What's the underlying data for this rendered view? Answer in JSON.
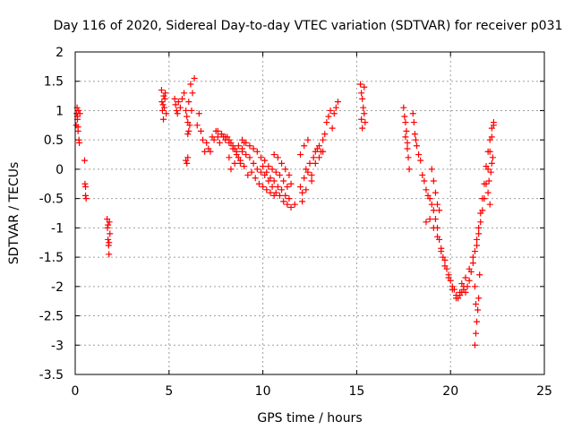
{
  "chart_data": {
    "type": "scatter",
    "title": "Day 116 of 2020, Sidereal Day-to-day VTEC variation (SDTVAR) for receiver p031",
    "xlabel": "GPS time / hours",
    "ylabel": "SDTVAR / TECUs",
    "xlim": [
      0,
      25
    ],
    "ylim": [
      -3.5,
      2
    ],
    "xticks": [
      "0",
      "5",
      "10",
      "15",
      "20",
      "25"
    ],
    "yticks": [
      "2",
      "1.5",
      "1",
      "0.5",
      "0",
      "-0.5",
      "-1",
      "-1.5",
      "-2",
      "-2.5",
      "-3",
      "-3.5"
    ],
    "grid": true,
    "marker": "+",
    "marker_color": "#ff0000",
    "series": [
      {
        "name": "SDTVAR",
        "points": [
          [
            0.05,
            0.75
          ],
          [
            0.08,
            0.95
          ],
          [
            0.1,
            1.05
          ],
          [
            0.12,
            0.85
          ],
          [
            0.15,
            0.65
          ],
          [
            0.18,
            1.0
          ],
          [
            0.2,
            0.5
          ],
          [
            0.22,
            0.45
          ],
          [
            0.25,
            0.95
          ],
          [
            0.15,
            0.72
          ],
          [
            0.12,
            0.9
          ],
          [
            0.5,
            0.15
          ],
          [
            0.52,
            -0.25
          ],
          [
            0.55,
            -0.3
          ],
          [
            0.58,
            -0.5
          ],
          [
            0.55,
            -0.45
          ],
          [
            1.7,
            -0.85
          ],
          [
            1.72,
            -1.0
          ],
          [
            1.75,
            -1.2
          ],
          [
            1.78,
            -1.3
          ],
          [
            1.8,
            -1.45
          ],
          [
            1.82,
            -0.9
          ],
          [
            1.85,
            -1.1
          ],
          [
            1.75,
            -0.95
          ],
          [
            1.8,
            -1.25
          ],
          [
            4.6,
            1.35
          ],
          [
            4.62,
            1.15
          ],
          [
            4.65,
            1.0
          ],
          [
            4.7,
            0.85
          ],
          [
            4.72,
            1.25
          ],
          [
            4.75,
            1.05
          ],
          [
            4.8,
            1.3
          ],
          [
            4.85,
            0.95
          ],
          [
            4.78,
            1.2
          ],
          [
            4.68,
            1.1
          ],
          [
            5.3,
            1.2
          ],
          [
            5.35,
            1.1
          ],
          [
            5.4,
            1.0
          ],
          [
            5.45,
            0.95
          ],
          [
            5.5,
            1.15
          ],
          [
            5.6,
            1.05
          ],
          [
            5.7,
            1.2
          ],
          [
            5.8,
            1.3
          ],
          [
            5.9,
            1.0
          ],
          [
            5.95,
            0.9
          ],
          [
            6.0,
            0.8
          ],
          [
            6.05,
            0.65
          ],
          [
            6.0,
            0.6
          ],
          [
            6.1,
            0.75
          ],
          [
            6.2,
            1.0
          ],
          [
            6.25,
            1.3
          ],
          [
            6.05,
            1.15
          ],
          [
            5.9,
            0.15
          ],
          [
            5.95,
            0.1
          ],
          [
            6.0,
            0.2
          ],
          [
            6.35,
            1.55
          ],
          [
            6.15,
            1.45
          ],
          [
            6.5,
            0.75
          ],
          [
            6.6,
            0.95
          ],
          [
            6.7,
            0.65
          ],
          [
            6.8,
            0.5
          ],
          [
            6.9,
            0.3
          ],
          [
            7.0,
            0.45
          ],
          [
            7.1,
            0.35
          ],
          [
            7.2,
            0.3
          ],
          [
            7.3,
            0.55
          ],
          [
            7.4,
            0.5
          ],
          [
            7.5,
            0.65
          ],
          [
            7.6,
            0.55
          ],
          [
            7.7,
            0.45
          ],
          [
            7.8,
            0.6
          ],
          [
            7.9,
            0.55
          ],
          [
            8.0,
            0.5
          ],
          [
            8.1,
            0.55
          ],
          [
            8.2,
            0.5
          ],
          [
            8.3,
            0.45
          ],
          [
            8.4,
            0.4
          ],
          [
            8.5,
            0.35
          ],
          [
            8.6,
            0.3
          ],
          [
            8.7,
            0.2
          ],
          [
            8.8,
            0.15
          ],
          [
            8.9,
            0.35
          ],
          [
            9.0,
            0.45
          ],
          [
            8.5,
            0.1
          ],
          [
            8.3,
            0.0
          ],
          [
            8.2,
            0.2
          ],
          [
            7.6,
            0.65
          ],
          [
            7.8,
            0.6
          ],
          [
            8.0,
            0.55
          ],
          [
            8.2,
            0.45
          ],
          [
            8.4,
            0.35
          ],
          [
            8.6,
            0.25
          ],
          [
            8.8,
            0.1
          ],
          [
            9.0,
            0.05
          ],
          [
            8.7,
            0.4
          ],
          [
            8.9,
            0.3
          ],
          [
            9.1,
            0.25
          ],
          [
            9.3,
            0.2
          ],
          [
            9.5,
            0.1
          ],
          [
            9.7,
            0.0
          ],
          [
            9.9,
            -0.05
          ],
          [
            10.1,
            -0.1
          ],
          [
            10.3,
            -0.2
          ],
          [
            10.5,
            -0.3
          ],
          [
            10.7,
            -0.4
          ],
          [
            10.9,
            -0.45
          ],
          [
            11.1,
            -0.55
          ],
          [
            11.3,
            -0.6
          ],
          [
            11.5,
            -0.65
          ],
          [
            11.7,
            -0.6
          ],
          [
            8.9,
            0.5
          ],
          [
            9.1,
            0.45
          ],
          [
            9.3,
            0.4
          ],
          [
            9.5,
            0.35
          ],
          [
            9.7,
            0.3
          ],
          [
            9.9,
            0.2
          ],
          [
            10.1,
            0.15
          ],
          [
            10.3,
            0.05
          ],
          [
            10.5,
            0.0
          ],
          [
            10.7,
            -0.05
          ],
          [
            10.9,
            -0.1
          ],
          [
            11.1,
            -0.2
          ],
          [
            11.3,
            -0.3
          ],
          [
            9.2,
            -0.1
          ],
          [
            9.4,
            -0.05
          ],
          [
            9.6,
            -0.15
          ],
          [
            9.8,
            -0.25
          ],
          [
            10.0,
            -0.3
          ],
          [
            10.2,
            -0.35
          ],
          [
            10.4,
            -0.4
          ],
          [
            10.6,
            -0.45
          ],
          [
            10.0,
            0.05
          ],
          [
            10.2,
            -0.05
          ],
          [
            10.4,
            -0.15
          ],
          [
            10.6,
            -0.2
          ],
          [
            10.8,
            -0.3
          ],
          [
            11.0,
            -0.35
          ],
          [
            11.2,
            -0.45
          ],
          [
            11.4,
            -0.5
          ],
          [
            10.6,
            0.25
          ],
          [
            10.8,
            0.2
          ],
          [
            11.0,
            0.1
          ],
          [
            11.2,
            0.0
          ],
          [
            11.4,
            -0.1
          ],
          [
            11.5,
            -0.25
          ],
          [
            12.0,
            -0.3
          ],
          [
            12.1,
            -0.4
          ],
          [
            12.2,
            -0.15
          ],
          [
            12.3,
            0.0
          ],
          [
            12.4,
            -0.05
          ],
          [
            12.5,
            0.1
          ],
          [
            12.6,
            -0.1
          ],
          [
            12.7,
            0.2
          ],
          [
            12.8,
            0.3
          ],
          [
            12.9,
            0.35
          ],
          [
            13.0,
            0.4
          ],
          [
            13.1,
            0.3
          ],
          [
            13.2,
            0.5
          ],
          [
            13.3,
            0.6
          ],
          [
            13.4,
            0.8
          ],
          [
            13.5,
            0.9
          ],
          [
            13.6,
            1.0
          ],
          [
            13.7,
            0.7
          ],
          [
            13.8,
            0.95
          ],
          [
            13.9,
            1.05
          ],
          [
            14.0,
            1.15
          ],
          [
            12.4,
            0.5
          ],
          [
            12.2,
            0.4
          ],
          [
            12.0,
            0.25
          ],
          [
            12.1,
            -0.55
          ],
          [
            12.3,
            -0.35
          ],
          [
            12.6,
            -0.2
          ],
          [
            12.8,
            0.1
          ],
          [
            13.0,
            0.2
          ],
          [
            13.2,
            0.3
          ],
          [
            15.2,
            1.45
          ],
          [
            15.25,
            1.3
          ],
          [
            15.3,
            1.2
          ],
          [
            15.35,
            1.05
          ],
          [
            15.4,
            0.95
          ],
          [
            15.45,
            0.8
          ],
          [
            15.3,
            0.7
          ],
          [
            15.4,
            1.4
          ],
          [
            15.25,
            0.85
          ],
          [
            17.5,
            1.05
          ],
          [
            17.55,
            0.9
          ],
          [
            17.6,
            0.8
          ],
          [
            17.65,
            0.65
          ],
          [
            17.7,
            0.35
          ],
          [
            17.75,
            0.2
          ],
          [
            17.8,
            0.0
          ],
          [
            17.6,
            0.55
          ],
          [
            17.7,
            0.45
          ],
          [
            18.0,
            0.95
          ],
          [
            18.05,
            0.8
          ],
          [
            18.1,
            0.6
          ],
          [
            18.15,
            0.5
          ],
          [
            18.2,
            0.4
          ],
          [
            18.3,
            0.25
          ],
          [
            18.4,
            0.15
          ],
          [
            18.5,
            -0.1
          ],
          [
            18.6,
            -0.2
          ],
          [
            18.7,
            -0.35
          ],
          [
            18.8,
            -0.45
          ],
          [
            18.9,
            -0.5
          ],
          [
            19.0,
            -0.6
          ],
          [
            19.1,
            -0.7
          ],
          [
            19.2,
            -0.85
          ],
          [
            19.3,
            -1.0
          ],
          [
            19.4,
            -1.2
          ],
          [
            19.5,
            -1.35
          ],
          [
            19.6,
            -1.5
          ],
          [
            19.7,
            -1.55
          ],
          [
            19.8,
            -1.7
          ],
          [
            19.9,
            -1.8
          ],
          [
            20.0,
            -1.9
          ],
          [
            20.1,
            -2.0
          ],
          [
            20.2,
            -2.05
          ],
          [
            20.3,
            -2.15
          ],
          [
            20.4,
            -2.2
          ],
          [
            20.5,
            -2.15
          ],
          [
            20.6,
            -2.1
          ],
          [
            20.7,
            -2.05
          ],
          [
            20.8,
            -2.1
          ],
          [
            20.9,
            -2.0
          ],
          [
            18.7,
            -0.9
          ],
          [
            18.9,
            -0.85
          ],
          [
            19.1,
            -1.0
          ],
          [
            19.3,
            -1.15
          ],
          [
            19.5,
            -1.4
          ],
          [
            19.7,
            -1.65
          ],
          [
            19.9,
            -1.85
          ],
          [
            20.1,
            -2.05
          ],
          [
            20.3,
            -2.2
          ],
          [
            20.5,
            -2.1
          ],
          [
            20.7,
            -2.0
          ],
          [
            19.0,
            0.0
          ],
          [
            19.1,
            -0.2
          ],
          [
            19.2,
            -0.4
          ],
          [
            19.3,
            -0.6
          ],
          [
            19.4,
            -0.7
          ],
          [
            20.6,
            -1.95
          ],
          [
            20.8,
            -1.85
          ],
          [
            21.0,
            -1.7
          ],
          [
            21.2,
            -1.5
          ],
          [
            21.4,
            -1.3
          ],
          [
            21.5,
            -1.1
          ],
          [
            21.6,
            -0.9
          ],
          [
            21.7,
            -0.7
          ],
          [
            21.8,
            -0.5
          ],
          [
            21.9,
            -0.25
          ],
          [
            22.0,
            0.0
          ],
          [
            22.1,
            0.3
          ],
          [
            22.2,
            0.55
          ],
          [
            22.3,
            0.75
          ],
          [
            21.0,
            -1.9
          ],
          [
            21.1,
            -1.75
          ],
          [
            21.2,
            -1.6
          ],
          [
            21.3,
            -1.4
          ],
          [
            21.4,
            -1.2
          ],
          [
            21.5,
            -1.0
          ],
          [
            21.6,
            -0.75
          ],
          [
            21.7,
            -0.5
          ],
          [
            21.8,
            -0.25
          ],
          [
            21.9,
            0.05
          ],
          [
            22.0,
            0.3
          ],
          [
            22.1,
            0.5
          ],
          [
            22.2,
            0.7
          ],
          [
            22.3,
            0.8
          ],
          [
            21.3,
            -2.0
          ],
          [
            21.35,
            -2.3
          ],
          [
            21.4,
            -2.6
          ],
          [
            21.35,
            -2.8
          ],
          [
            21.3,
            -3.0
          ],
          [
            21.45,
            -2.4
          ],
          [
            21.5,
            -2.2
          ],
          [
            21.55,
            -1.8
          ],
          [
            22.0,
            -0.4
          ],
          [
            22.05,
            -0.2
          ],
          [
            22.1,
            -0.6
          ],
          [
            22.15,
            -0.05
          ],
          [
            22.2,
            0.1
          ],
          [
            22.25,
            0.2
          ]
        ]
      }
    ]
  }
}
